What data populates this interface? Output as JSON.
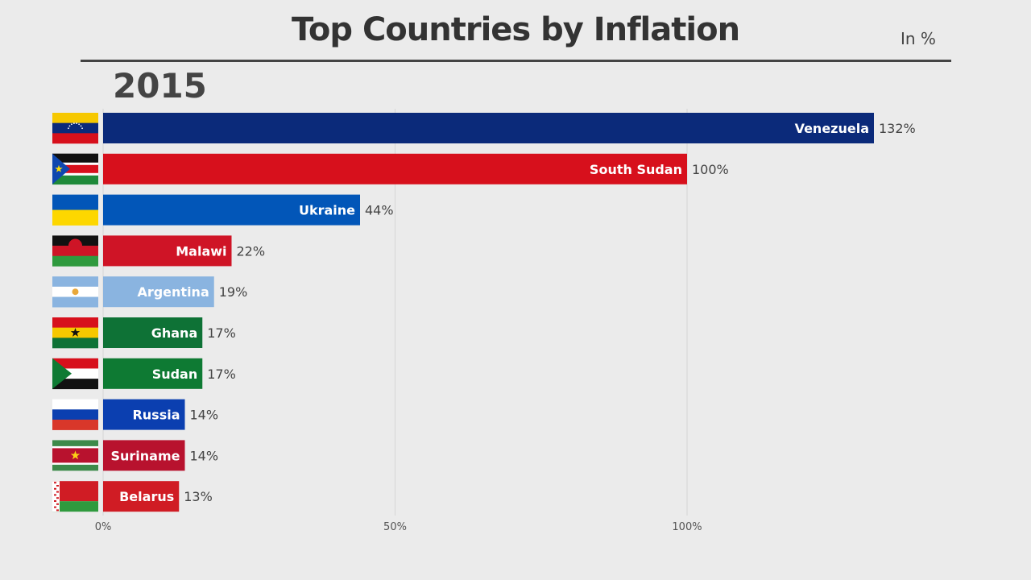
{
  "chart_data": {
    "type": "bar",
    "orientation": "horizontal",
    "title": "Top Countries by Inflation",
    "unit_label": "In %",
    "year": "2015",
    "xlim": [
      0,
      160
    ],
    "xticks": [
      0,
      50,
      100
    ],
    "xtick_labels": [
      "0%",
      "50%",
      "100%"
    ],
    "grid": true,
    "categories": [
      "Venezuela",
      "South Sudan",
      "Ukraine",
      "Malawi",
      "Argentina",
      "Ghana",
      "Sudan",
      "Russia",
      "Suriname",
      "Belarus"
    ],
    "values": [
      132,
      100,
      44,
      22,
      19,
      17,
      17,
      14,
      14,
      13
    ],
    "value_labels": [
      "132%",
      "100%",
      "44%",
      "22%",
      "19%",
      "17%",
      "17%",
      "14%",
      "14%",
      "13%"
    ],
    "colors": [
      "#0b2a7a",
      "#d7101c",
      "#0256b8",
      "#cf1426",
      "#8ab4e0",
      "#0e7236",
      "#0e7a33",
      "#0b3fb0",
      "#b8122e",
      "#d01c24"
    ],
    "flags": [
      "venezuela-flag-icon",
      "south-sudan-flag-icon",
      "ukraine-flag-icon",
      "malawi-flag-icon",
      "argentina-flag-icon",
      "ghana-flag-icon",
      "sudan-flag-icon",
      "russia-flag-icon",
      "suriname-flag-icon",
      "belarus-flag-icon"
    ]
  }
}
